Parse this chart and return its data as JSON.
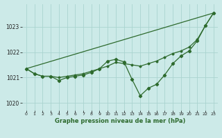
{
  "title": "Graphe pression niveau de la mer (hPa)",
  "bg_color": "#cceae8",
  "grid_color": "#aad4d0",
  "line_color": "#2d6a2d",
  "xlim": [
    -0.5,
    23.5
  ],
  "ylim": [
    1019.7,
    1023.9
  ],
  "yticks": [
    1020,
    1021,
    1022,
    1023
  ],
  "xticks": [
    0,
    1,
    2,
    3,
    4,
    5,
    6,
    7,
    8,
    9,
    10,
    11,
    12,
    13,
    14,
    15,
    16,
    17,
    18,
    19,
    20,
    21,
    22,
    23
  ],
  "series1": [
    1021.35,
    1021.15,
    1021.05,
    1021.05,
    1021.0,
    1021.05,
    1021.1,
    1021.15,
    1021.25,
    1021.35,
    1021.45,
    1021.6,
    1021.55,
    1021.5,
    1021.45,
    1021.55,
    1021.65,
    1021.8,
    1021.95,
    1022.05,
    1022.2,
    1022.5,
    1023.05,
    1023.55
  ],
  "series2_x": [
    0,
    23
  ],
  "series2_y": [
    1021.35,
    1023.55
  ],
  "series3_x": [
    0,
    1,
    2,
    3,
    4,
    5,
    6,
    7,
    8,
    9,
    10,
    11,
    12,
    13,
    14,
    15,
    16,
    17,
    18,
    19,
    20,
    21,
    22,
    23
  ],
  "series3": [
    1021.35,
    1021.15,
    1021.05,
    1021.05,
    1020.88,
    1021.0,
    1021.05,
    1021.1,
    1021.2,
    1021.35,
    1021.65,
    1021.72,
    1021.62,
    1020.92,
    1020.28,
    1020.58,
    1020.73,
    1021.1,
    1021.55,
    1021.85,
    1022.05,
    1022.45,
    1023.05,
    1023.55
  ]
}
